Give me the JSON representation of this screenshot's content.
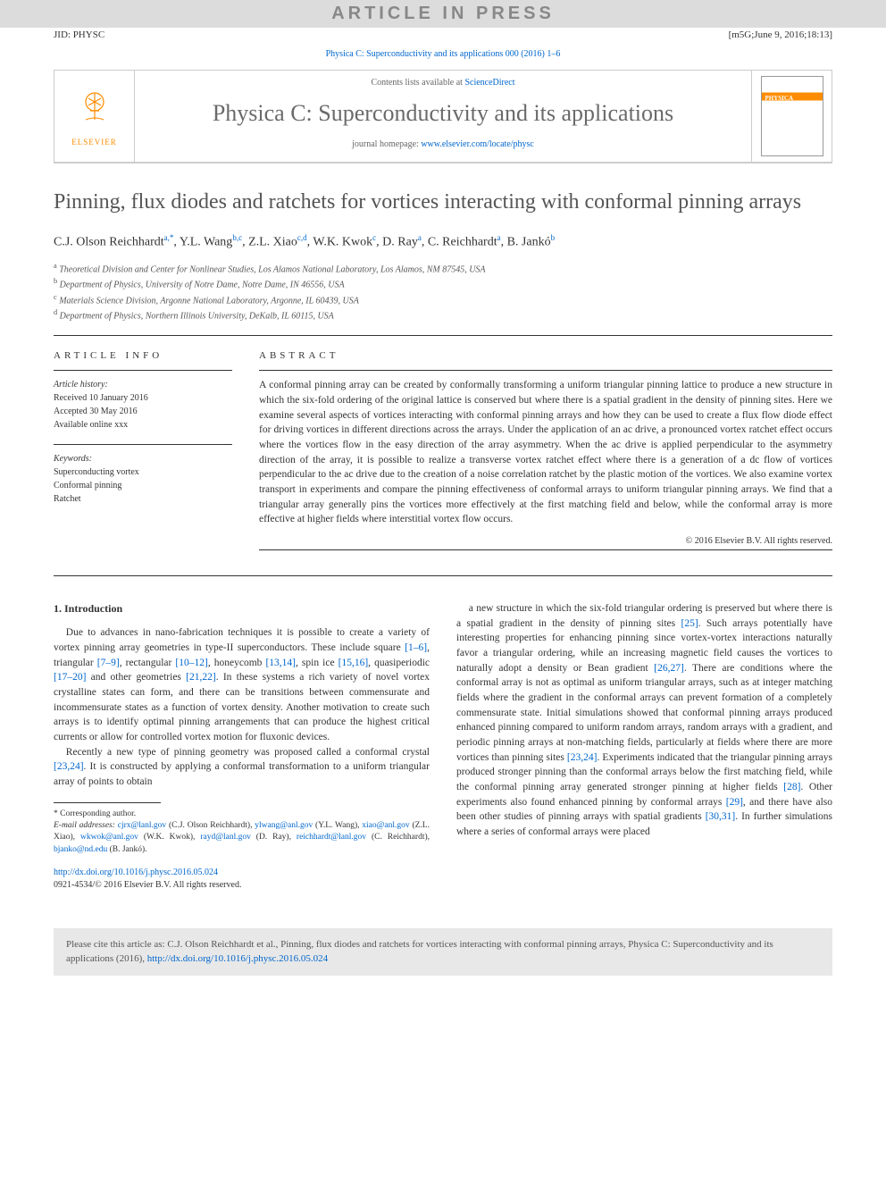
{
  "topBar": "ARTICLE IN PRESS",
  "jid": {
    "left": "JID: PHYSC",
    "right": "[m5G;June 9, 2016;18:13]"
  },
  "citationTop": "Physica C: Superconductivity and its applications 000 (2016) 1–6",
  "header": {
    "elsevierText": "ELSEVIER",
    "contentsPrefix": "Contents lists available at ",
    "contentsLink": "ScienceDirect",
    "journalName": "Physica C: Superconductivity and its applications",
    "homepagePrefix": "journal homepage: ",
    "homepageLink": "www.elsevier.com/locate/physc"
  },
  "title": "Pinning, flux diodes and ratchets for vortices interacting with conformal pinning arrays",
  "authorsHtml": "C.J. Olson Reichhardt<sup>a,*</sup>, Y.L. Wang<sup>b,c</sup>, Z.L. Xiao<sup>c,d</sup>, W.K. Kwok<sup>c</sup>, D. Ray<sup>a</sup>, C. Reichhardt<sup>a</sup>, B. Jankó<sup>b</sup>",
  "affiliations": {
    "a": "Theoretical Division and Center for Nonlinear Studies, Los Alamos National Laboratory, Los Alamos, NM 87545, USA",
    "b": "Department of Physics, University of Notre Dame, Notre Dame, IN 46556, USA",
    "c": "Materials Science Division, Argonne National Laboratory, Argonne, IL 60439, USA",
    "d": "Department of Physics, Northern Illinois University, DeKalb, IL 60115, USA"
  },
  "articleInfo": {
    "label": "ARTICLE INFO",
    "historyLabel": "Article history:",
    "received": "Received 10 January 2016",
    "accepted": "Accepted 30 May 2016",
    "available": "Available online xxx",
    "keywordsLabel": "Keywords:",
    "keywords": [
      "Superconducting vortex",
      "Conformal pinning",
      "Ratchet"
    ]
  },
  "abstract": {
    "label": "ABSTRACT",
    "text": "A conformal pinning array can be created by conformally transforming a uniform triangular pinning lattice to produce a new structure in which the six-fold ordering of the original lattice is conserved but where there is a spatial gradient in the density of pinning sites. Here we examine several aspects of vortices interacting with conformal pinning arrays and how they can be used to create a flux flow diode effect for driving vortices in different directions across the arrays. Under the application of an ac drive, a pronounced vortex ratchet effect occurs where the vortices flow in the easy direction of the array asymmetry. When the ac drive is applied perpendicular to the asymmetry direction of the array, it is possible to realize a transverse vortex ratchet effect where there is a generation of a dc flow of vortices perpendicular to the ac drive due to the creation of a noise correlation ratchet by the plastic motion of the vortices. We also examine vortex transport in experiments and compare the pinning effectiveness of conformal arrays to uniform triangular pinning arrays. We find that a triangular array generally pins the vortices more effectively at the first matching field and below, while the conformal array is more effective at higher fields where interstitial vortex flow occurs.",
    "copyright": "© 2016 Elsevier B.V. All rights reserved."
  },
  "introHeading": "1. Introduction",
  "introP1": "Due to advances in nano-fabrication techniques it is possible to create a variety of vortex pinning array geometries in type-II superconductors. These include square [1–6], triangular [7–9], rectangular [10–12], honeycomb [13,14], spin ice [15,16], quasiperiodic [17–20] and other geometries [21,22]. In these systems a rich variety of novel vortex crystalline states can form, and there can be transitions between commensurate and incommensurate states as a function of vortex density. Another motivation to create such arrays is to identify optimal pinning arrangements that can produce the highest critical currents or allow for controlled vortex motion for fluxonic devices.",
  "introP2": "Recently a new type of pinning geometry was proposed called a conformal crystal [23,24]. It is constructed by applying a conformal transformation to a uniform triangular array of points to obtain",
  "introP3": "a new structure in which the six-fold triangular ordering is preserved but where there is a spatial gradient in the density of pinning sites [25]. Such arrays potentially have interesting properties for enhancing pinning since vortex-vortex interactions naturally favor a triangular ordering, while an increasing magnetic field causes the vortices to naturally adopt a density or Bean gradient [26,27]. There are conditions where the conformal array is not as optimal as uniform triangular arrays, such as at integer matching fields where the gradient in the conformal arrays can prevent formation of a completely commensurate state. Initial simulations showed that conformal pinning arrays produced enhanced pinning compared to uniform random arrays, random arrays with a gradient, and periodic pinning arrays at non-matching fields, particularly at fields where there are more vortices than pinning sites [23,24]. Experiments indicated that the triangular pinning arrays produced stronger pinning than the conformal arrays below the first matching field, while the conformal pinning array generated stronger pinning at higher fields [28]. Other experiments also found enhanced pinning by conformal arrays [29], and there have also been other studies of pinning arrays with spatial gradients [30,31]. In further simulations where a series of conformal arrays were placed",
  "footnotes": {
    "corresponding": "* Corresponding author.",
    "emailLabel": "E-mail addresses:",
    "emails": "cjrx@lanl.gov (C.J. Olson Reichhardt), ylwang@anl.gov (Y.L. Wang), xiao@anl.gov (Z.L. Xiao), wkwok@anl.gov (W.K. Kwok), rayd@lanl.gov (D. Ray), reichhardt@lanl.gov (C. Reichhardt), bjanko@nd.edu (B. Jankó)."
  },
  "doi": {
    "link": "http://dx.doi.org/10.1016/j.physc.2016.05.024",
    "issn": "0921-4534/© 2016 Elsevier B.V. All rights reserved."
  },
  "citeBox": {
    "prefix": "Please cite this article as: C.J. Olson Reichhardt et al., Pinning, flux diodes and ratchets for vortices interacting with conformal pinning arrays, Physica C: Superconductivity and its applications (2016), ",
    "link": "http://dx.doi.org/10.1016/j.physc.2016.05.024"
  },
  "refColor": "#0066cc"
}
